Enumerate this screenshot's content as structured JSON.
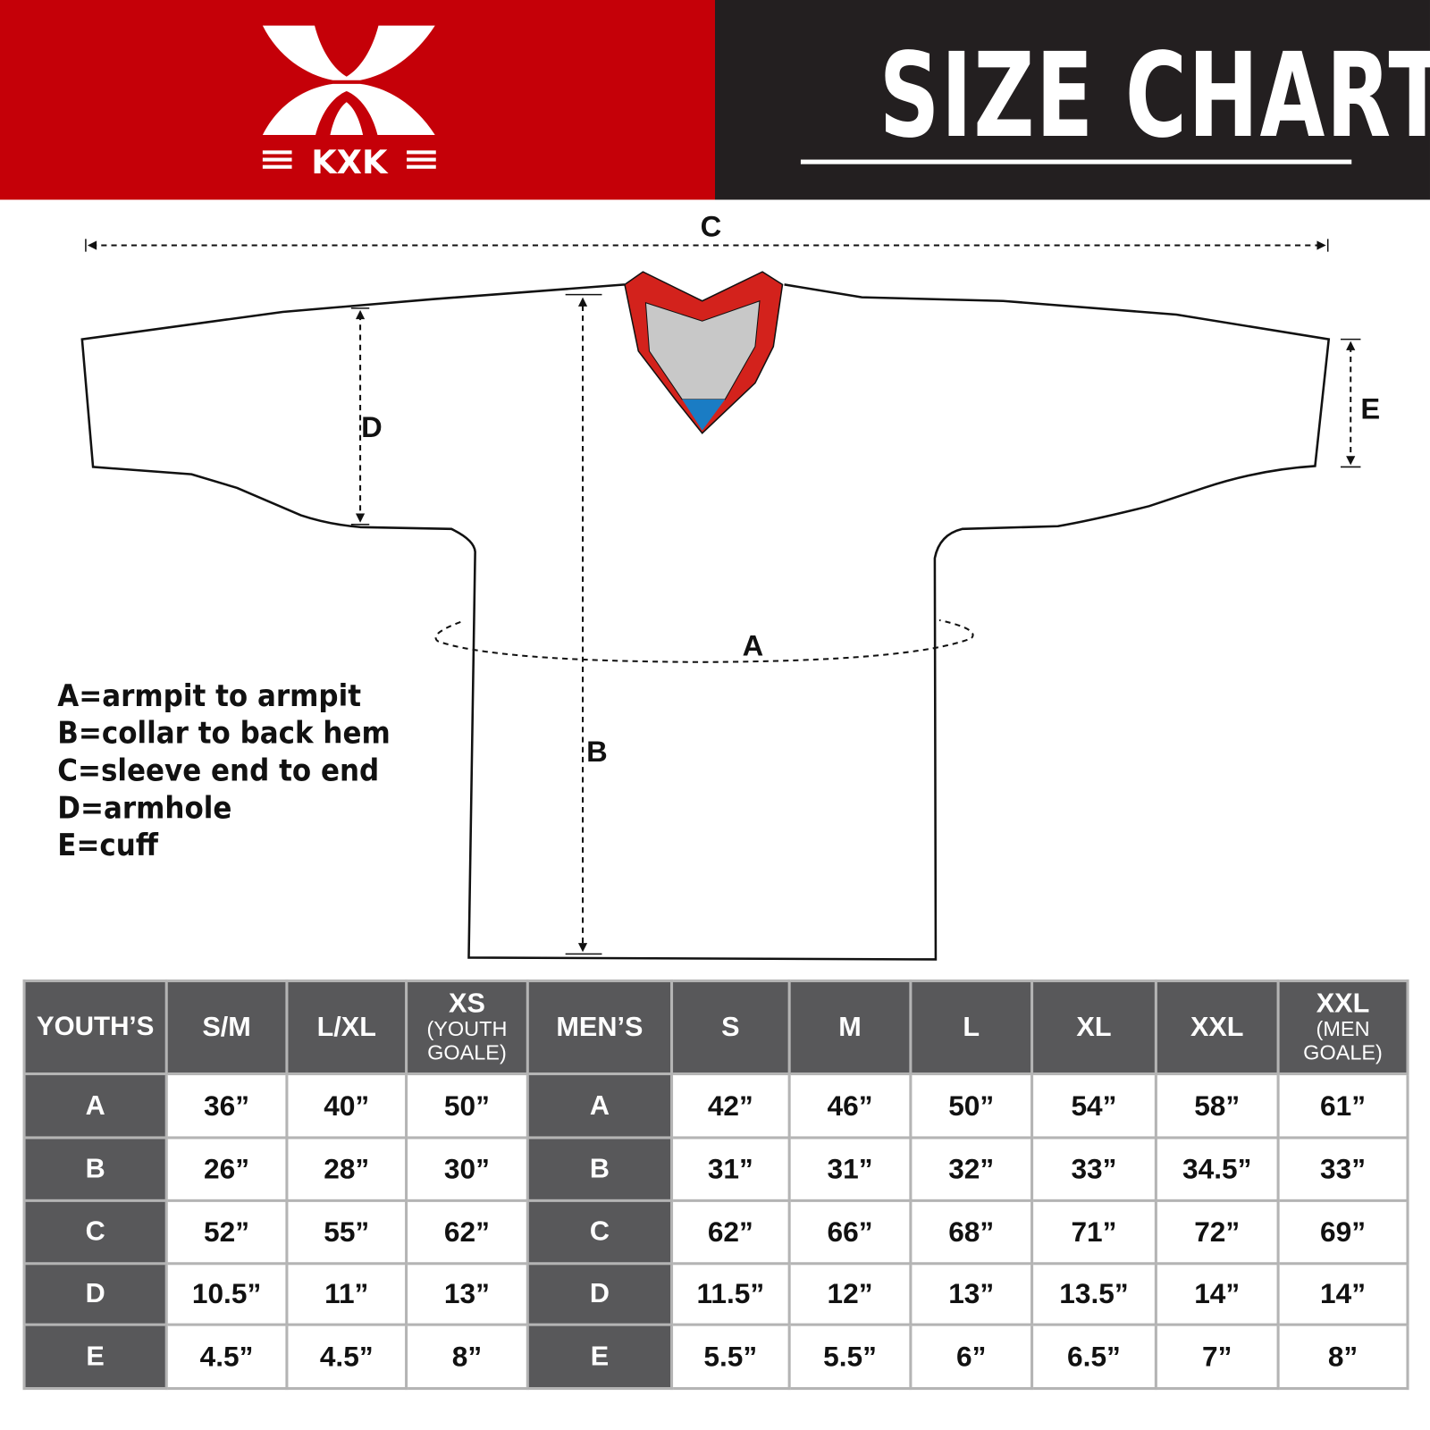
{
  "header": {
    "brand": "KXK",
    "title": "SIZE CHART",
    "colors": {
      "brand_red": "#c50008",
      "dark": "#231f20"
    }
  },
  "diagram": {
    "labels": {
      "A": "A",
      "B": "B",
      "C": "C",
      "D": "D",
      "E": "E"
    },
    "colors": {
      "collar": "#d3221c",
      "collar_inner": "#c8c8c8",
      "collar_tip": "#1a7cc4"
    }
  },
  "legend": [
    "A=armpit to armpit",
    "B=collar to back hem",
    "C=sleeve end to end",
    "D=armhole",
    "E=cuff"
  ],
  "table": {
    "youth_header": "YOUTH’S",
    "youth_sizes": [
      {
        "main": "S/M",
        "sub": ""
      },
      {
        "main": "L/XL",
        "sub": ""
      },
      {
        "main": "XS",
        "sub": "(YOUTH GOALE)"
      }
    ],
    "men_header": "MEN’S",
    "men_sizes": [
      {
        "main": "S",
        "sub": ""
      },
      {
        "main": "M",
        "sub": ""
      },
      {
        "main": "L",
        "sub": ""
      },
      {
        "main": "XL",
        "sub": ""
      },
      {
        "main": "XXL",
        "sub": ""
      },
      {
        "main": "XXL",
        "sub": "(MEN GOALE)"
      }
    ],
    "rows": [
      {
        "label": "A",
        "youth": [
          "36”",
          "40”",
          "50”"
        ],
        "men": [
          "42”",
          "46”",
          "50”",
          "54”",
          "58”",
          "61”"
        ]
      },
      {
        "label": "B",
        "youth": [
          "26”",
          "28”",
          "30”"
        ],
        "men": [
          "31”",
          "31”",
          "32”",
          "33”",
          "34.5”",
          "33”"
        ]
      },
      {
        "label": "C",
        "youth": [
          "52”",
          "55”",
          "62”"
        ],
        "men": [
          "62”",
          "66”",
          "68”",
          "71”",
          "72”",
          "69”"
        ]
      },
      {
        "label": "D",
        "youth": [
          "10.5”",
          "11”",
          "13”"
        ],
        "men": [
          "11.5”",
          "12”",
          "13”",
          "13.5”",
          "14”",
          "14”"
        ]
      },
      {
        "label": "E",
        "youth": [
          "4.5”",
          "4.5”",
          "8”"
        ],
        "men": [
          "5.5”",
          "5.5”",
          "6”",
          "6.5”",
          "7”",
          "8”"
        ]
      }
    ]
  }
}
